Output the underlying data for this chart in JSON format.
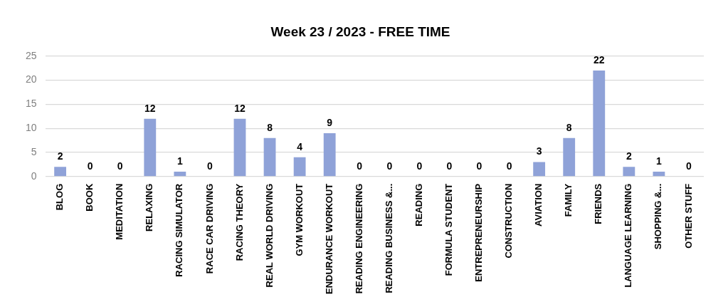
{
  "chart_data": {
    "type": "bar",
    "title": "Week 23 / 2023 - FREE TIME",
    "categories": [
      "BLOG",
      "BOOK",
      "MEDITATION",
      "RELAXING",
      "RACING SIMULATOR",
      "RACE CAR DRIVING",
      "RACING THEORY",
      "REAL WORLD DRIVING",
      "GYM WORKOUT",
      "ENDURANCE WORKOUT",
      "READING ENGINEERING",
      "READING BUSINESS &...",
      "READING",
      "FORMULA STUDENT",
      "ENTREPRENEURSHIP",
      "CONSTRUCTION",
      "AVIATION",
      "FAMILY",
      "FRIENDS",
      "LANGUAGE LEARNING",
      "SHOPPING &...",
      "OTHER STUFF"
    ],
    "values": [
      2,
      0,
      0,
      12,
      1,
      0,
      12,
      8,
      4,
      9,
      0,
      0,
      0,
      0,
      0,
      0,
      3,
      8,
      22,
      2,
      1,
      0
    ],
    "color": "#8fa2d8",
    "ylim": [
      0,
      25
    ],
    "yticks": [
      0,
      5,
      10,
      15,
      20,
      25
    ],
    "grid": "y",
    "data_labels": true
  }
}
